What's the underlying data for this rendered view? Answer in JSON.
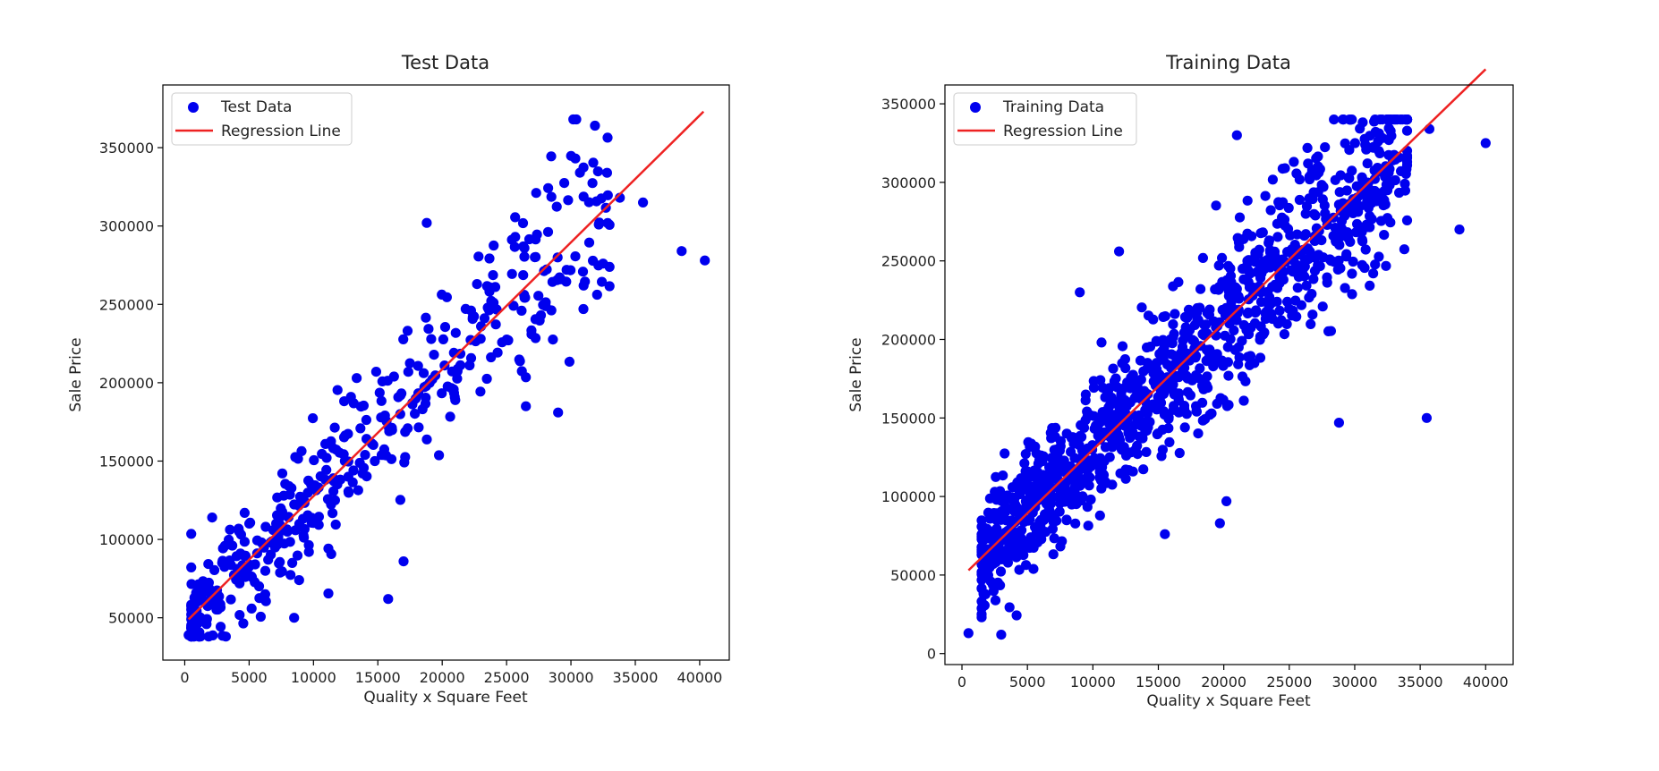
{
  "charts": [
    {
      "type": "scatter",
      "title": "Test Data",
      "xlabel": "Quality x Square Feet",
      "ylabel": "Sale Price",
      "xlim": [
        -1700,
        42300
      ],
      "ylim": [
        23000,
        390000
      ],
      "xticks": [
        0,
        5000,
        10000,
        15000,
        20000,
        25000,
        30000,
        35000,
        40000
      ],
      "yticks": [
        50000,
        100000,
        150000,
        200000,
        250000,
        300000,
        350000
      ],
      "legend_position": "upper-left",
      "legend": {
        "scatter": "Test Data",
        "line": "Regression Line"
      },
      "point_color": "#0000ee",
      "line_color": "#ee2222",
      "regression": {
        "x": [
          300,
          40300
        ],
        "y": [
          49000,
          373000
        ]
      },
      "seed": 7,
      "n_points": 440,
      "x_range": [
        500,
        33000
      ],
      "noise_sd": 26000,
      "outliers": [
        [
          300,
          39000
        ],
        [
          8500,
          50000
        ],
        [
          15800,
          62000
        ],
        [
          1200,
          68000
        ],
        [
          38600,
          284000
        ],
        [
          40400,
          278000
        ],
        [
          35600,
          315000
        ],
        [
          29000,
          181000
        ],
        [
          26500,
          185000
        ],
        [
          17000,
          86000
        ],
        [
          18800,
          302000
        ],
        [
          30700,
          334000
        ],
        [
          32500,
          276000
        ],
        [
          33800,
          318000
        ]
      ]
    },
    {
      "type": "scatter",
      "title": "Training Data",
      "xlabel": "Quality x Square Feet",
      "ylabel": "Sale Price",
      "xlim": [
        -1300,
        42100
      ],
      "ylim": [
        -7000,
        362000
      ],
      "xticks": [
        0,
        5000,
        10000,
        15000,
        20000,
        25000,
        30000,
        35000,
        40000
      ],
      "yticks": [
        0,
        50000,
        100000,
        150000,
        200000,
        250000,
        300000,
        350000
      ],
      "legend_position": "upper-left",
      "legend": {
        "scatter": "Training Data",
        "line": "Regression Line"
      },
      "point_color": "#0000ee",
      "line_color": "#ee2222",
      "regression": {
        "x": [
          500,
          40000
        ],
        "y": [
          53000,
          372000
        ]
      },
      "seed": 13,
      "n_points": 1150,
      "x_range": [
        1500,
        34000
      ],
      "noise_sd": 26000,
      "outliers": [
        [
          500,
          13000
        ],
        [
          3000,
          12000
        ],
        [
          40000,
          325000
        ],
        [
          35500,
          150000
        ],
        [
          28800,
          147000
        ],
        [
          38000,
          270000
        ],
        [
          19700,
          83000
        ],
        [
          20200,
          97000
        ],
        [
          15500,
          76000
        ],
        [
          9000,
          230000
        ],
        [
          12000,
          256000
        ],
        [
          21000,
          330000
        ],
        [
          35700,
          334000
        ]
      ]
    }
  ]
}
